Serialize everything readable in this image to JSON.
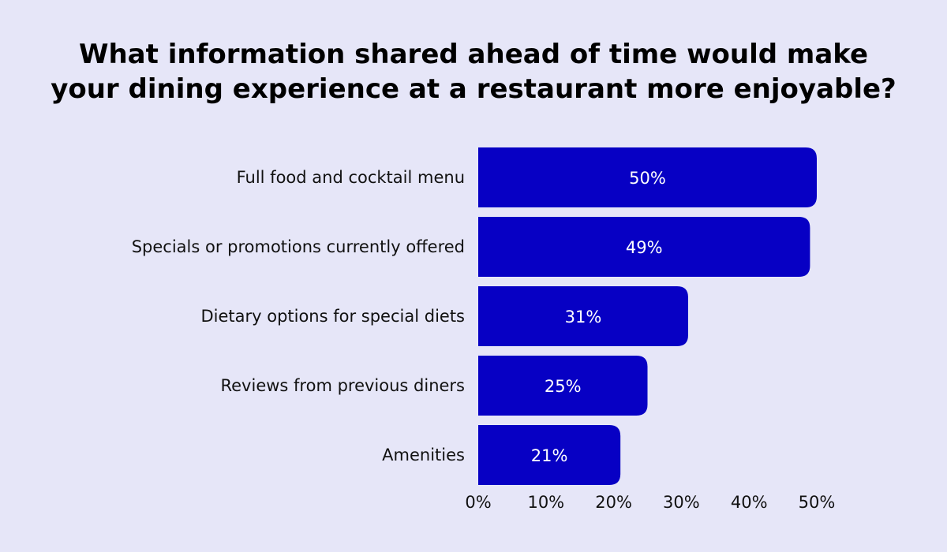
{
  "chart_data": {
    "type": "bar",
    "orientation": "horizontal",
    "title": "What information shared ahead of time would make your dining experience at a restaurant more enjoyable?",
    "title_lines": [
      "What information shared ahead of time would make",
      "your dining experience at a restaurant more enjoyable?"
    ],
    "categories": [
      "Full food and cocktail menu",
      "Specials or promotions currently offered",
      "Dietary options for special diets",
      "Reviews from previous diners",
      "Amenities"
    ],
    "values": [
      50,
      49,
      31,
      25,
      21
    ],
    "value_labels": [
      "50%",
      "49%",
      "31%",
      "25%",
      "21%"
    ],
    "xlim": [
      0,
      50
    ],
    "xticks": [
      0,
      10,
      20,
      30,
      40,
      50
    ],
    "xtick_labels": [
      "0%",
      "10%",
      "20%",
      "30%",
      "40%",
      "50%"
    ],
    "xlabel": "",
    "ylabel": "",
    "grid": false,
    "colors": {
      "bar": "#0700c4",
      "background": "#e6e6f8",
      "value_label": "#ffffff"
    }
  }
}
